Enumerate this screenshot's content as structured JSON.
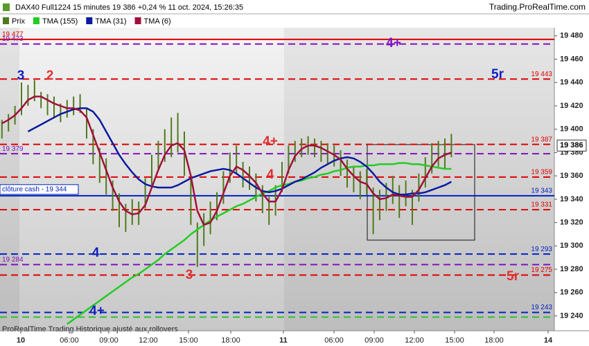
{
  "chart_data": {
    "type": "ohlc",
    "title": "DAX40 Full1224 15 minutes 19 386 +0,24 % 11 oct. 2024, 15:26:35",
    "source": "Trading.ProRealTime.com",
    "footer": "ProRealTime Trading  Historique ajusté aux rollovers",
    "x_labels": [
      "10",
      "06:00",
      "09:00",
      "12:00",
      "15:00",
      "18:00",
      "11",
      "06:00",
      "09:00",
      "12:00",
      "15:00",
      "18:00",
      "14"
    ],
    "ylim": [
      19232,
      19487
    ],
    "yticks": [
      {
        "value": 19240,
        "label": "19 240"
      },
      {
        "value": 19260,
        "label": "19 260"
      },
      {
        "value": 19280,
        "label": "19 280"
      },
      {
        "value": 19300,
        "label": "19 300"
      },
      {
        "value": 19320,
        "label": "19 320"
      },
      {
        "value": 19340,
        "label": "19 340"
      },
      {
        "value": 19360,
        "label": "19 360"
      },
      {
        "value": 19380,
        "label": "19 380"
      },
      {
        "value": 19400,
        "label": "19 400"
      },
      {
        "value": 19420,
        "label": "19 420"
      },
      {
        "value": 19440,
        "label": "19 440"
      },
      {
        "value": 19460,
        "label": "19 460"
      },
      {
        "value": 19480,
        "label": "19 480"
      }
    ],
    "price": {
      "name": "Prix",
      "color": "#4f7a1c",
      "high": [
        19408,
        19413,
        19420,
        19440,
        19438,
        19442,
        19432,
        19430,
        19428,
        19422,
        19425,
        19428,
        19430,
        19418,
        19400,
        19384,
        19375,
        19356,
        19345,
        19336,
        19340,
        19338,
        19358,
        19378,
        19390,
        19400,
        19410,
        19414,
        19398,
        19360,
        19320,
        19328,
        19338,
        19346,
        19364,
        19380,
        19386,
        19372,
        19368,
        19362,
        19352,
        19342,
        19352,
        19372,
        19386,
        19390,
        19392,
        19394,
        19392,
        19390,
        19388,
        19386,
        19382,
        19374,
        19368,
        19364,
        19366,
        19350,
        19348,
        19354,
        19360,
        19352,
        19356,
        19348,
        19362,
        19376,
        19388,
        19390,
        19392,
        19396
      ],
      "low": [
        19392,
        19398,
        19404,
        19412,
        19420,
        19424,
        19418,
        19412,
        19410,
        19406,
        19410,
        19412,
        19414,
        19392,
        19370,
        19354,
        19344,
        19330,
        19316,
        19312,
        19318,
        19318,
        19332,
        19352,
        19366,
        19372,
        19376,
        19380,
        19360,
        19318,
        19282,
        19300,
        19310,
        19322,
        19336,
        19354,
        19362,
        19350,
        19348,
        19338,
        19328,
        19318,
        19326,
        19346,
        19362,
        19372,
        19376,
        19378,
        19376,
        19372,
        19370,
        19368,
        19360,
        19350,
        19346,
        19340,
        19344,
        19310,
        19322,
        19330,
        19336,
        19324,
        19334,
        19318,
        19338,
        19350,
        19362,
        19368,
        19366,
        19376
      ]
    },
    "series": [
      {
        "name": "TMA (155)",
        "color": "#22cc22",
        "values": [
          null,
          null,
          null,
          null,
          null,
          null,
          null,
          null,
          null,
          null,
          19233,
          19237,
          19241,
          19245,
          19249,
          19253,
          19257,
          19261,
          19265,
          19269,
          19273,
          19276,
          19280,
          19284,
          19288,
          19293,
          19297,
          19301,
          19305,
          19310,
          19314,
          19318,
          19322,
          19325,
          19328,
          19331,
          19334,
          19336,
          19339,
          19342,
          19345,
          19347,
          19350,
          19352,
          19353,
          19355,
          19356,
          19358,
          19359,
          19361,
          19362,
          19364,
          19365,
          19367,
          19368,
          19368,
          19369,
          19369,
          19370,
          19370,
          19370,
          19371,
          19371,
          19370,
          19370,
          19369,
          19368,
          19367,
          19366,
          19366
        ]
      },
      {
        "name": "TMA (31)",
        "color": "#0a1aa0",
        "values": [
          null,
          null,
          null,
          null,
          19398,
          19401,
          19404,
          19407,
          19410,
          19413,
          19415,
          19417,
          19418,
          19418,
          19415,
          19408,
          19398,
          19388,
          19378,
          19370,
          19363,
          19357,
          19353,
          19351,
          19350,
          19350,
          19350,
          19352,
          19355,
          19358,
          19360,
          19362,
          19364,
          19365,
          19366,
          19365,
          19362,
          19358,
          19354,
          19350,
          19347,
          19346,
          19347,
          19349,
          19352,
          19355,
          19357,
          19360,
          19363,
          19367,
          19370,
          19373,
          19375,
          19376,
          19375,
          19372,
          19368,
          19362,
          19355,
          19350,
          19346,
          19344,
          19344,
          19345,
          19345,
          19346,
          19348,
          19350,
          19352,
          19355
        ]
      },
      {
        "name": "TMA (6)",
        "color": "#a0103a",
        "values": [
          19405,
          19408,
          19412,
          19418,
          19425,
          19428,
          19428,
          19425,
          19422,
          19420,
          19418,
          19418,
          19416,
          19410,
          19395,
          19380,
          19365,
          19350,
          19338,
          19330,
          19327,
          19328,
          19335,
          19350,
          19365,
          19378,
          19386,
          19388,
          19382,
          19360,
          19330,
          19318,
          19320,
          19330,
          19345,
          19360,
          19368,
          19365,
          19360,
          19354,
          19345,
          19338,
          19338,
          19348,
          19365,
          19377,
          19383,
          19386,
          19386,
          19384,
          19381,
          19378,
          19374,
          19366,
          19360,
          19355,
          19353,
          19345,
          19340,
          19341,
          19344,
          19343,
          19342,
          19342,
          19348,
          19358,
          19368,
          19375,
          19378,
          19380
        ]
      }
    ],
    "levels": [
      {
        "value": 19477,
        "color": "#e00000",
        "style": "solid",
        "label": "19 477",
        "side": "left"
      },
      {
        "value": 19473,
        "color": "#8010c0",
        "style": "dashed",
        "label": "19 473",
        "side": "left"
      },
      {
        "value": 19443,
        "color": "#e00000",
        "style": "dashed",
        "label": "19 443",
        "side": "right"
      },
      {
        "value": 19387,
        "color": "#e00000",
        "style": "dashed",
        "label": "19 387",
        "side": "right"
      },
      {
        "value": 19379,
        "color": "#8010c0",
        "style": "dashed",
        "label": "19 379",
        "side": "left"
      },
      {
        "value": 19359,
        "color": "#e00000",
        "style": "dashed",
        "label": "19 359",
        "side": "right"
      },
      {
        "value": 19343,
        "color": "#0020c0",
        "style": "solid",
        "label": "19 343",
        "side": "right"
      },
      {
        "value": 19331,
        "color": "#e00000",
        "style": "dashed",
        "label": "19 331",
        "side": "right"
      },
      {
        "value": 19293,
        "color": "#0020c0",
        "style": "dashed",
        "label": "19 293",
        "side": "right"
      },
      {
        "value": 19284,
        "color": "#8010c0",
        "style": "dashed",
        "label": "19 284",
        "side": "left"
      },
      {
        "value": 19275,
        "color": "#e00000",
        "style": "dashed",
        "label": "19 275",
        "side": "right"
      },
      {
        "value": 19243,
        "color": "#0020c0",
        "style": "dashed",
        "label": "19 243",
        "side": "right"
      },
      {
        "value": 19239,
        "color": "#30c030",
        "style": "dashed"
      }
    ],
    "cash_close_label": "clôture cash -  19 344",
    "last_price": {
      "value": 19386,
      "label": "19 386"
    },
    "annotations": [
      {
        "text": "3",
        "color": "#1020c0"
      },
      {
        "text": "2",
        "color": "#e03030"
      },
      {
        "text": "5r",
        "color": "#1020c0"
      },
      {
        "text": "4+",
        "color": "#8010c0"
      },
      {
        "text": "4+",
        "color": "#e03030"
      },
      {
        "text": "4",
        "color": "#e03030"
      },
      {
        "text": "4",
        "color": "#1020c0"
      },
      {
        "text": "3",
        "color": "#e03030"
      },
      {
        "text": "5r",
        "color": "#e03030"
      },
      {
        "text": "4+",
        "color": "#1020c0"
      }
    ]
  }
}
